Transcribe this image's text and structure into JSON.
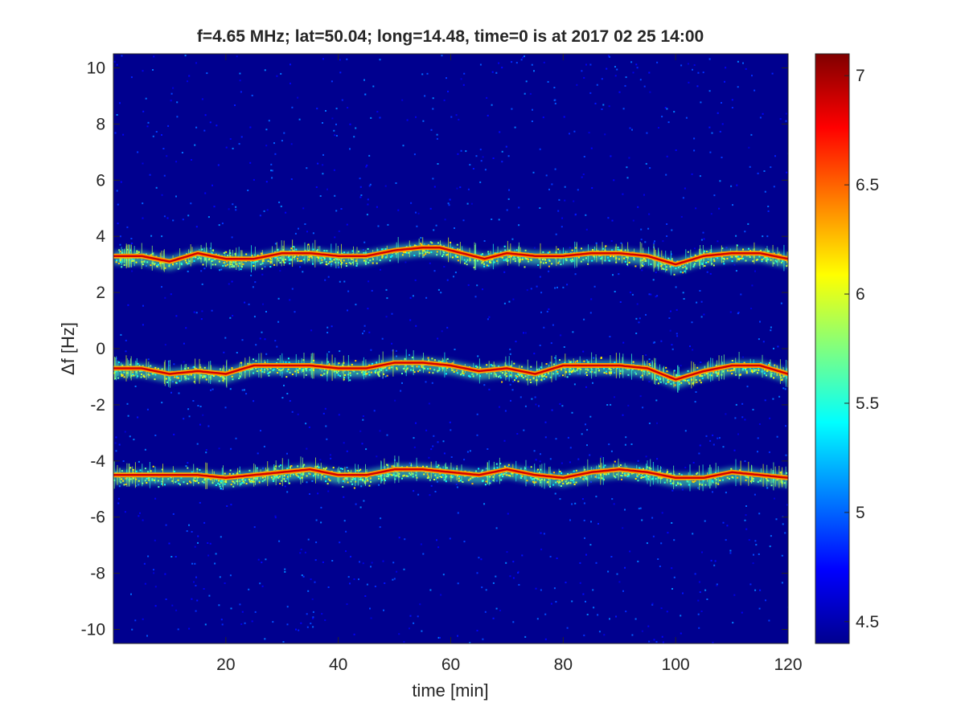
{
  "chart_data": {
    "type": "heatmap",
    "title": "f=4.65 MHz;  lat=50.04; long=14.48, time=0 is at 2017 02 25 14:00",
    "xlabel": "time [min]",
    "ylabel": "Δf [Hz]",
    "xlim": [
      0,
      120
    ],
    "ylim": [
      -10.5,
      10.5
    ],
    "xticks": [
      20,
      40,
      60,
      80,
      100,
      120
    ],
    "yticks": [
      10,
      8,
      6,
      4,
      2,
      0,
      -2,
      -4,
      -6,
      -8,
      -10
    ],
    "colorbar": {
      "colormap": "jet",
      "clim": [
        4.4,
        7.1
      ],
      "ticks": [
        7,
        6.5,
        6,
        5.5,
        5,
        4.5
      ]
    },
    "background_level": 4.4,
    "grid": false,
    "series": [
      {
        "x": [
          0,
          5,
          10,
          15,
          20,
          25,
          30,
          35,
          40,
          45,
          50,
          55,
          58,
          62,
          66,
          70,
          75,
          80,
          85,
          90,
          95,
          100,
          105,
          110,
          115,
          120
        ],
        "y": [
          3.3,
          3.3,
          3.1,
          3.4,
          3.2,
          3.2,
          3.4,
          3.4,
          3.3,
          3.3,
          3.5,
          3.6,
          3.6,
          3.4,
          3.2,
          3.4,
          3.3,
          3.3,
          3.4,
          3.4,
          3.3,
          3.0,
          3.3,
          3.4,
          3.4,
          3.2
        ]
      },
      {
        "x": [
          0,
          5,
          10,
          15,
          20,
          25,
          30,
          35,
          40,
          45,
          50,
          55,
          60,
          65,
          70,
          75,
          80,
          85,
          90,
          95,
          100,
          105,
          110,
          115,
          120
        ],
        "y": [
          -0.7,
          -0.7,
          -0.9,
          -0.8,
          -0.9,
          -0.6,
          -0.6,
          -0.6,
          -0.7,
          -0.7,
          -0.5,
          -0.5,
          -0.6,
          -0.8,
          -0.7,
          -0.9,
          -0.6,
          -0.6,
          -0.6,
          -0.7,
          -1.1,
          -0.8,
          -0.6,
          -0.6,
          -0.9
        ]
      },
      {
        "x": [
          0,
          5,
          10,
          15,
          20,
          25,
          30,
          35,
          40,
          45,
          50,
          55,
          60,
          65,
          70,
          75,
          80,
          85,
          90,
          95,
          100,
          105,
          110,
          115,
          120
        ],
        "y": [
          -4.5,
          -4.5,
          -4.5,
          -4.5,
          -4.6,
          -4.5,
          -4.4,
          -4.3,
          -4.5,
          -4.5,
          -4.3,
          -4.3,
          -4.4,
          -4.5,
          -4.3,
          -4.5,
          -4.6,
          -4.4,
          -4.3,
          -4.4,
          -4.6,
          -4.6,
          -4.4,
          -4.5,
          -4.6
        ]
      }
    ]
  }
}
